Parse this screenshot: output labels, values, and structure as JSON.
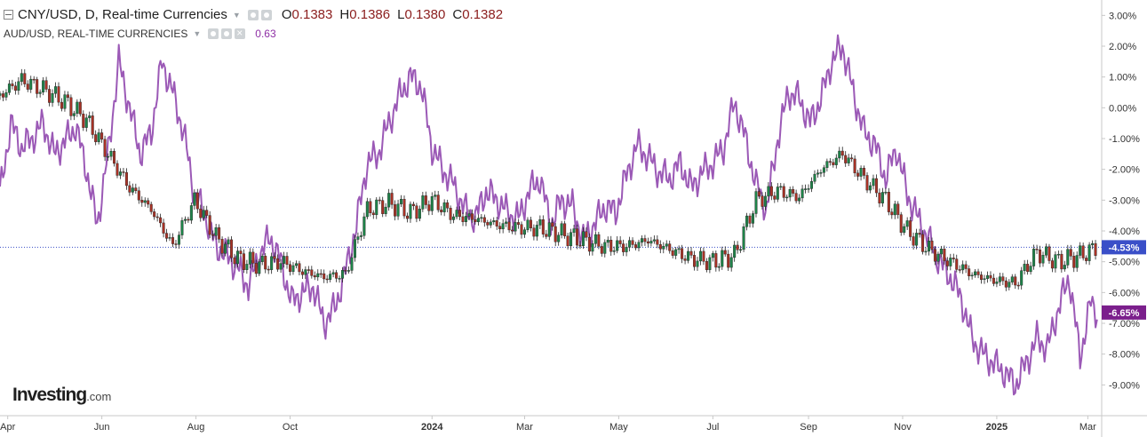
{
  "header": {
    "main_symbol": "CNY/USD, D, Real-time Currencies",
    "ohlc": [
      {
        "key": "O",
        "value": "0.1383"
      },
      {
        "key": "H",
        "value": "0.1386"
      },
      {
        "key": "L",
        "value": "0.1380"
      },
      {
        "key": "C",
        "value": "0.1382"
      }
    ],
    "compare_symbol": "AUD/USD, REAL-TIME CURRENCIES",
    "compare_value": "0.63"
  },
  "logo": {
    "brand": "Investing",
    "suffix": ".com"
  },
  "colors": {
    "compare_line": "#9b59b6",
    "candle_up": "#1e8449",
    "candle_down": "#a93226",
    "price_line": "#3a4fc8",
    "cny_badge": "#3a4fc8",
    "aud_badge": "#7b1f8c",
    "axis_text": "#333333",
    "axis_border": "#c8c8c8"
  },
  "chart_data": {
    "type": "line",
    "y_axis_unit": "percent change",
    "ylim": [
      -10.0,
      3.5
    ],
    "y_ticks": [
      "3.00%",
      "2.00%",
      "1.00%",
      "0.00%",
      "-1.00%",
      "-2.00%",
      "-3.00%",
      "-4.00%",
      "-5.00%",
      "-6.00%",
      "-7.00%",
      "-8.00%",
      "-9.00%"
    ],
    "x_range": [
      "2023-03-27",
      "2025-03-10"
    ],
    "x_ticks": [
      {
        "label": "Apr",
        "date": "2023-04-01"
      },
      {
        "label": "Jun",
        "date": "2023-06-01"
      },
      {
        "label": "Aug",
        "date": "2023-08-01"
      },
      {
        "label": "Oct",
        "date": "2023-10-01"
      },
      {
        "label": "2024",
        "date": "2024-01-01",
        "bold": true
      },
      {
        "label": "Mar",
        "date": "2024-03-01"
      },
      {
        "label": "May",
        "date": "2024-05-01"
      },
      {
        "label": "Jul",
        "date": "2024-07-01"
      },
      {
        "label": "Sep",
        "date": "2024-09-01"
      },
      {
        "label": "Nov",
        "date": "2024-11-01"
      },
      {
        "label": "2025",
        "date": "2025-01-01",
        "bold": true
      },
      {
        "label": "Mar",
        "date": "2025-03-01"
      }
    ],
    "current_line": -4.53,
    "badges": [
      {
        "label": "-4.53%",
        "value": -4.53,
        "series": "CNY/USD"
      },
      {
        "label": "-6.65%",
        "value": -6.65,
        "series": "AUD/USD"
      }
    ],
    "series": [
      {
        "name": "CNY/USD",
        "style": "candlestick",
        "x": [
          "2023-03-27",
          "2023-04-10",
          "2023-04-24",
          "2023-05-08",
          "2023-05-22",
          "2023-06-05",
          "2023-06-19",
          "2023-07-03",
          "2023-07-17",
          "2023-07-31",
          "2023-08-14",
          "2023-08-28",
          "2023-09-11",
          "2023-09-25",
          "2023-10-09",
          "2023-10-23",
          "2023-11-06",
          "2023-11-20",
          "2023-12-04",
          "2023-12-18",
          "2024-01-01",
          "2024-01-15",
          "2024-01-29",
          "2024-02-12",
          "2024-02-26",
          "2024-03-11",
          "2024-03-25",
          "2024-04-08",
          "2024-04-22",
          "2024-05-06",
          "2024-05-20",
          "2024-06-03",
          "2024-06-17",
          "2024-07-01",
          "2024-07-15",
          "2024-07-29",
          "2024-08-12",
          "2024-08-26",
          "2024-09-09",
          "2024-09-23",
          "2024-10-07",
          "2024-10-21",
          "2024-11-04",
          "2024-11-18",
          "2024-12-02",
          "2024-12-16",
          "2024-12-30",
          "2025-01-13",
          "2025-01-27",
          "2025-02-10",
          "2025-02-24",
          "2025-03-07"
        ],
        "values": [
          0.4,
          0.9,
          0.6,
          0.2,
          -0.4,
          -1.5,
          -2.6,
          -3.3,
          -4.5,
          -3.0,
          -4.2,
          -4.9,
          -5.1,
          -5.0,
          -5.3,
          -5.5,
          -5.4,
          -3.3,
          -3.1,
          -3.4,
          -3.0,
          -3.5,
          -3.6,
          -3.8,
          -3.9,
          -3.9,
          -4.1,
          -4.3,
          -4.5,
          -4.5,
          -4.3,
          -4.6,
          -4.9,
          -5.0,
          -4.8,
          -3.0,
          -2.7,
          -2.9,
          -2.0,
          -1.5,
          -2.3,
          -3.0,
          -4.0,
          -4.6,
          -5.0,
          -5.4,
          -5.6,
          -5.7,
          -4.7,
          -5.0,
          -4.8,
          -4.53
        ]
      },
      {
        "name": "AUD/USD",
        "style": "line",
        "x": [
          "2023-03-27",
          "2023-04-03",
          "2023-04-10",
          "2023-04-17",
          "2023-04-24",
          "2023-05-01",
          "2023-05-08",
          "2023-05-15",
          "2023-05-22",
          "2023-05-29",
          "2023-06-05",
          "2023-06-12",
          "2023-06-19",
          "2023-06-26",
          "2023-07-03",
          "2023-07-10",
          "2023-07-17",
          "2023-07-24",
          "2023-07-31",
          "2023-08-07",
          "2023-08-14",
          "2023-08-21",
          "2023-08-28",
          "2023-09-04",
          "2023-09-11",
          "2023-09-18",
          "2023-09-25",
          "2023-10-02",
          "2023-10-09",
          "2023-10-16",
          "2023-10-23",
          "2023-10-30",
          "2023-11-06",
          "2023-11-13",
          "2023-11-20",
          "2023-11-27",
          "2023-12-04",
          "2023-12-11",
          "2023-12-18",
          "2023-12-25",
          "2024-01-01",
          "2024-01-08",
          "2024-01-15",
          "2024-01-22",
          "2024-01-29",
          "2024-02-05",
          "2024-02-12",
          "2024-02-19",
          "2024-02-26",
          "2024-03-04",
          "2024-03-11",
          "2024-03-18",
          "2024-03-25",
          "2024-04-01",
          "2024-04-08",
          "2024-04-15",
          "2024-04-22",
          "2024-04-29",
          "2024-05-06",
          "2024-05-13",
          "2024-05-20",
          "2024-05-27",
          "2024-06-03",
          "2024-06-10",
          "2024-06-17",
          "2024-06-24",
          "2024-07-01",
          "2024-07-08",
          "2024-07-15",
          "2024-07-22",
          "2024-07-29",
          "2024-08-05",
          "2024-08-12",
          "2024-08-19",
          "2024-08-26",
          "2024-09-02",
          "2024-09-09",
          "2024-09-16",
          "2024-09-23",
          "2024-09-30",
          "2024-10-07",
          "2024-10-14",
          "2024-10-21",
          "2024-10-28",
          "2024-11-04",
          "2024-11-11",
          "2024-11-18",
          "2024-11-25",
          "2024-12-02",
          "2024-12-09",
          "2024-12-16",
          "2024-12-23",
          "2024-12-30",
          "2025-01-06",
          "2025-01-13",
          "2025-01-20",
          "2025-01-27",
          "2025-02-03",
          "2025-02-10",
          "2025-02-17",
          "2025-02-24",
          "2025-03-03",
          "2025-03-07"
        ],
        "values": [
          -2.8,
          -0.5,
          -1.3,
          -1.0,
          -0.5,
          -1.5,
          -1.1,
          -0.6,
          -2.0,
          -3.8,
          -1.5,
          1.5,
          0.0,
          -1.5,
          -0.8,
          1.5,
          0.5,
          -0.8,
          -2.8,
          -3.5,
          -4.5,
          -4.8,
          -5.2,
          -5.8,
          -4.8,
          -4.2,
          -5.0,
          -6.3,
          -6.0,
          -5.8,
          -7.0,
          -6.5,
          -5.3,
          -3.8,
          -1.8,
          -1.5,
          -0.5,
          0.4,
          1.0,
          0.7,
          -1.3,
          -2.0,
          -2.5,
          -3.3,
          -3.6,
          -2.7,
          -3.0,
          -3.4,
          -3.6,
          -2.7,
          -2.3,
          -3.8,
          -3.0,
          -3.2,
          -4.3,
          -3.8,
          -3.2,
          -3.4,
          -2.2,
          -1.2,
          -1.6,
          -2.1,
          -2.3,
          -1.8,
          -2.6,
          -2.1,
          -1.8,
          -1.3,
          0.2,
          -1.0,
          -2.5,
          -3.3,
          -1.0,
          0.5,
          0.3,
          -0.5,
          0.3,
          1.5,
          2.0,
          0.5,
          -0.8,
          -1.2,
          -2.3,
          -1.3,
          -2.8,
          -3.6,
          -4.3,
          -5.0,
          -5.5,
          -6.2,
          -7.5,
          -8.0,
          -8.3,
          -8.6,
          -9.0,
          -8.3,
          -7.5,
          -7.8,
          -6.5,
          -5.5,
          -8.1,
          -6.3,
          -6.65
        ]
      }
    ]
  }
}
